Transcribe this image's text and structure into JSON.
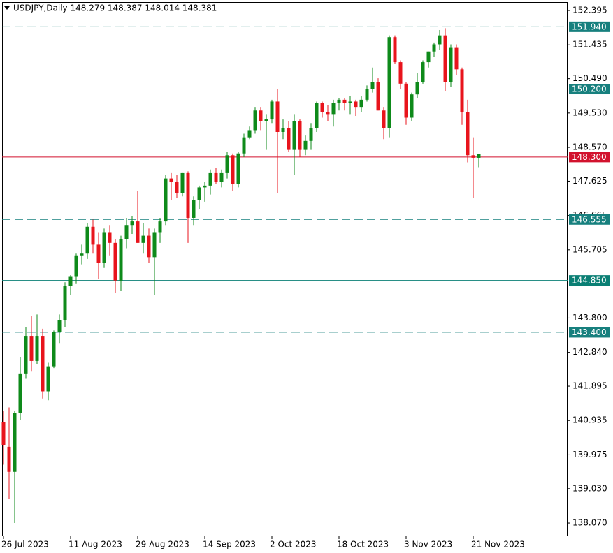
{
  "chart_data": {
    "type": "candlestick",
    "title": "USDJPY,Daily  148.279 148.387 148.014 148.381",
    "categories": [
      "26 Jul 2023",
      null,
      null,
      null,
      null,
      null,
      null,
      null,
      null,
      null,
      null,
      null,
      "11 Aug 2023",
      null,
      null,
      null,
      null,
      null,
      null,
      null,
      null,
      null,
      null,
      null,
      "29 Aug 2023",
      null,
      null,
      null,
      null,
      null,
      null,
      null,
      null,
      null,
      null,
      null,
      "14 Sep 2023",
      null,
      null,
      null,
      null,
      null,
      null,
      null,
      null,
      null,
      null,
      null,
      "2 Oct 2023",
      null,
      null,
      null,
      null,
      null,
      null,
      null,
      null,
      null,
      null,
      null,
      "18 Oct 2023",
      null,
      null,
      null,
      null,
      null,
      null,
      null,
      null,
      null,
      null,
      null,
      "3 Nov 2023",
      null,
      null,
      null,
      null,
      null,
      null,
      null,
      null,
      null,
      null,
      null,
      "21 Nov 2023",
      null
    ],
    "open": [
      140.9,
      140.2,
      139.5,
      141.15,
      142.25,
      143.3,
      142.6,
      143.3,
      141.75,
      142.45,
      143.4,
      143.75,
      144.7,
      144.95,
      145.55,
      145.6,
      146.35,
      145.85,
      145.35,
      146.2,
      145.9,
      144.85,
      146.0,
      146.4,
      146.5,
      145.9,
      146.1,
      145.5,
      146.2,
      146.5,
      147.7,
      147.6,
      147.3,
      147.85,
      146.6,
      147.1,
      147.45,
      147.5,
      147.85,
      147.6,
      147.85,
      148.35,
      147.55,
      148.4,
      148.85,
      149.05,
      149.6,
      149.3,
      149.35,
      149.85,
      149.0,
      149.1,
      148.5,
      149.3,
      148.5,
      148.75,
      149.1,
      149.8,
      149.55,
      149.5,
      149.8,
      149.9,
      149.8,
      149.85,
      149.7,
      149.9,
      150.2,
      150.4,
      149.6,
      149.1,
      151.65,
      150.95,
      150.35,
      149.4,
      150.05,
      150.4,
      150.95,
      151.25,
      151.45,
      151.7,
      150.4,
      151.35,
      150.75,
      149.55,
      148.35,
      148.279
    ],
    "high": [
      141.2,
      141.3,
      141.2,
      142.7,
      143.55,
      143.85,
      143.9,
      143.5,
      142.55,
      143.45,
      143.9,
      144.8,
      145.0,
      145.6,
      145.85,
      146.45,
      146.55,
      146.2,
      146.3,
      146.4,
      146.0,
      146.1,
      146.6,
      146.65,
      147.35,
      146.45,
      146.3,
      146.3,
      146.6,
      147.8,
      147.85,
      147.8,
      147.85,
      147.9,
      147.2,
      147.5,
      147.6,
      147.95,
      148.0,
      147.95,
      148.45,
      148.4,
      148.45,
      148.95,
      149.15,
      149.7,
      149.7,
      149.5,
      149.9,
      150.2,
      149.35,
      149.3,
      149.5,
      149.35,
      148.9,
      149.25,
      149.85,
      149.85,
      149.75,
      149.9,
      149.95,
      149.95,
      150.0,
      149.9,
      150.0,
      150.3,
      150.8,
      150.5,
      149.7,
      151.7,
      151.7,
      151.0,
      150.4,
      150.1,
      150.65,
      151.0,
      151.25,
      151.5,
      151.85,
      151.9,
      151.45,
      151.45,
      150.8,
      149.9,
      148.85,
      148.387
    ],
    "low": [
      139.7,
      138.75,
      138.07,
      140.95,
      142.1,
      142.3,
      142.5,
      141.55,
      141.5,
      142.4,
      143.1,
      143.55,
      144.45,
      144.75,
      145.3,
      145.45,
      145.6,
      144.9,
      145.2,
      145.55,
      144.5,
      144.55,
      145.75,
      146.15,
      145.9,
      145.6,
      145.35,
      144.45,
      145.9,
      146.4,
      147.1,
      147.15,
      147.2,
      145.9,
      146.4,
      146.85,
      147.05,
      147.25,
      147.55,
      147.45,
      147.7,
      147.35,
      147.45,
      148.3,
      148.8,
      148.95,
      149.05,
      148.5,
      149.25,
      147.3,
      148.8,
      148.45,
      147.8,
      148.3,
      148.35,
      148.5,
      149.0,
      149.4,
      149.3,
      149.15,
      149.6,
      149.6,
      149.5,
      149.45,
      149.55,
      149.85,
      150.1,
      149.6,
      148.8,
      148.85,
      150.9,
      150.2,
      149.2,
      149.3,
      149.95,
      150.35,
      150.8,
      151.1,
      151.3,
      150.15,
      150.25,
      150.6,
      149.2,
      148.15,
      147.15,
      148.014
    ],
    "close": [
      140.25,
      139.5,
      141.15,
      142.25,
      143.3,
      142.6,
      143.3,
      141.75,
      142.45,
      143.4,
      143.75,
      144.7,
      144.95,
      145.55,
      145.6,
      146.35,
      145.85,
      145.35,
      146.2,
      145.9,
      144.85,
      146.0,
      146.4,
      146.5,
      145.9,
      146.1,
      145.5,
      146.2,
      146.5,
      147.7,
      147.6,
      147.3,
      147.85,
      146.6,
      147.1,
      147.45,
      147.5,
      147.85,
      147.6,
      147.85,
      148.35,
      147.55,
      148.4,
      148.85,
      149.05,
      149.6,
      149.3,
      149.35,
      149.85,
      149.0,
      149.1,
      148.5,
      149.3,
      148.5,
      148.75,
      149.1,
      149.8,
      149.55,
      149.5,
      149.8,
      149.9,
      149.8,
      149.85,
      149.7,
      149.9,
      150.2,
      150.4,
      149.6,
      149.1,
      151.65,
      150.95,
      150.35,
      149.4,
      150.05,
      150.4,
      150.95,
      151.25,
      151.45,
      151.7,
      150.4,
      151.35,
      150.75,
      149.55,
      148.35,
      148.28,
      148.381
    ],
    "up_color": "#0e8a1a",
    "down_color": "#e8141c",
    "ylim": [
      137.7,
      152.63
    ],
    "yticks": [
      152.395,
      151.435,
      {
        "value": 150.49,
        "label": "150.490"
      },
      {
        "value": 149.53,
        "label": "149.530"
      },
      {
        "value": 148.57,
        "label": "148.570"
      },
      147.625,
      146.665,
      145.705,
      {
        "value": 143.8,
        "label": "143.800"
      },
      {
        "value": 142.84,
        "label": "142.840"
      },
      141.895,
      140.935,
      139.975,
      {
        "value": 139.03,
        "label": "139.030"
      },
      {
        "value": 138.07,
        "label": "138.070"
      }
    ],
    "levels": [
      {
        "value": 151.94,
        "label": "151.940",
        "color": "#17807e",
        "style": "dashed"
      },
      {
        "value": 150.2,
        "label": "150.200",
        "color": "#17807e",
        "style": "dashed"
      },
      {
        "value": 148.3,
        "label": "148.300",
        "color": "#d2122e",
        "style": "solid"
      },
      {
        "value": 146.555,
        "label": "146.555",
        "color": "#17807e",
        "style": "dashed"
      },
      {
        "value": 144.85,
        "label": "144.850",
        "color": "#0a7f74",
        "style": "solid"
      },
      {
        "value": 143.4,
        "label": "143.400",
        "color": "#17807e",
        "style": "dashed"
      }
    ]
  }
}
